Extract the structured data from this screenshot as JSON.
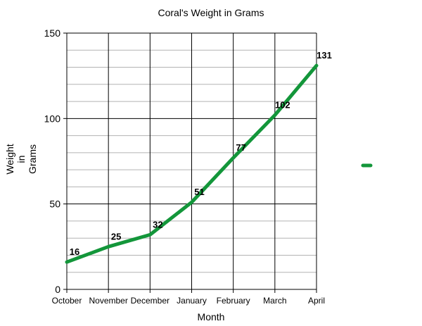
{
  "chart_data": {
    "type": "line",
    "title": "Coral's Weight in Grams",
    "xlabel": "Month",
    "ylabel": "Weight in Grams",
    "ylabel_lines": [
      "Weight",
      "in",
      "Grams"
    ],
    "categories": [
      "October",
      "November",
      "December",
      "January",
      "February",
      "March",
      "April"
    ],
    "series": [
      {
        "values": [
          16,
          25,
          32,
          51,
          77,
          102,
          131
        ]
      }
    ],
    "ylim": [
      0,
      150
    ],
    "yticks": [
      0,
      50,
      100,
      150
    ],
    "y_minor_step": 10,
    "grid": true,
    "legend": "right",
    "colors": {
      "line": "#13963a",
      "grid_major": "#000000",
      "grid_minor": "#b3b3b3"
    }
  }
}
